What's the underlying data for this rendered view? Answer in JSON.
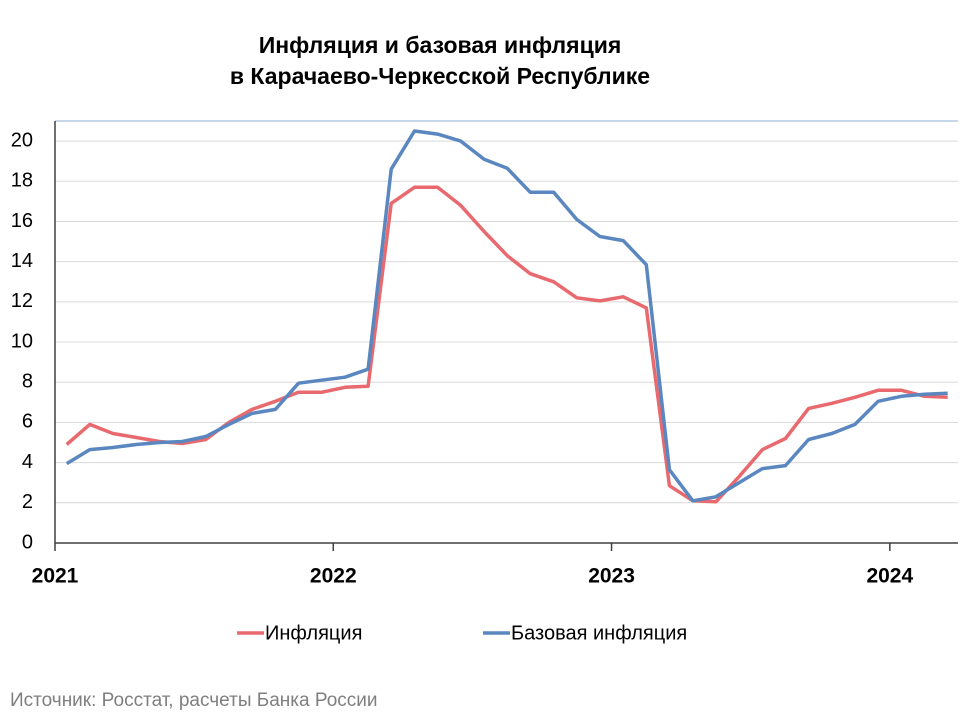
{
  "chart_data": {
    "type": "line",
    "title": "Инфляция и базовая инфляция",
    "subtitle": "в Карачаево-Черкесской Республике",
    "source": "Источник: Росстат, расчеты Банка России",
    "x": [
      2021.042,
      2021.125,
      2021.208,
      2021.292,
      2021.375,
      2021.458,
      2021.542,
      2021.625,
      2021.708,
      2021.792,
      2021.875,
      2021.958,
      2022.042,
      2022.125,
      2022.208,
      2022.292,
      2022.375,
      2022.458,
      2022.542,
      2022.625,
      2022.708,
      2022.792,
      2022.875,
      2022.958,
      2023.042,
      2023.125,
      2023.208,
      2023.292,
      2023.375,
      2023.458,
      2023.542,
      2023.625,
      2023.708,
      2023.792,
      2023.875,
      2023.958,
      2024.042,
      2024.125,
      2024.208
    ],
    "series": [
      {
        "name": "Инфляция",
        "color": "#e8696e",
        "values": [
          4.9,
          5.9,
          5.45,
          5.25,
          5.05,
          4.95,
          5.15,
          6.0,
          6.65,
          7.05,
          7.5,
          7.5,
          7.75,
          7.8,
          16.9,
          17.7,
          17.7,
          16.8,
          15.5,
          14.3,
          13.4,
          13.0,
          12.2,
          12.05,
          12.25,
          11.7,
          2.85,
          2.1,
          2.05,
          3.3,
          4.65,
          5.2,
          6.7,
          6.95,
          7.25,
          7.6,
          7.6,
          7.3,
          7.25
        ]
      },
      {
        "name": "Базовая инфляция",
        "color": "#5b87c0",
        "values": [
          3.95,
          4.65,
          4.75,
          4.9,
          5.0,
          5.05,
          5.3,
          5.9,
          6.45,
          6.65,
          7.95,
          8.1,
          8.25,
          8.65,
          18.6,
          20.5,
          20.35,
          20.0,
          19.1,
          18.65,
          17.45,
          17.45,
          16.1,
          15.25,
          15.05,
          13.85,
          3.65,
          2.1,
          2.3,
          3.0,
          3.7,
          3.85,
          5.15,
          5.45,
          5.9,
          7.05,
          7.3,
          7.4,
          7.45
        ]
      }
    ],
    "xlim": [
      2021,
      2024.245
    ],
    "xticks": [
      2021,
      2022,
      2023,
      2024
    ],
    "ylim": [
      0,
      21
    ],
    "yticks": [
      0,
      2,
      4,
      6,
      8,
      10,
      12,
      14,
      16,
      18,
      20
    ],
    "grid": true,
    "legend": "bottom"
  }
}
